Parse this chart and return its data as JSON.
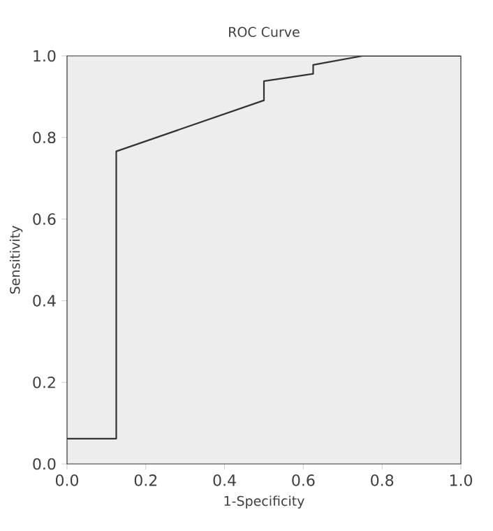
{
  "chart_data": {
    "type": "line",
    "title": "ROC Curve",
    "xlabel": "1-Specificity",
    "ylabel": "Sensitivity",
    "x": [
      0,
      0.125,
      0.125,
      0.5,
      0.5,
      0.625,
      0.625,
      0.75,
      1
    ],
    "series": [
      {
        "color": "#333333",
        "values": [
          0.062,
          0.062,
          0.766,
          0.891,
          0.938,
          0.956,
          0.978,
          1,
          1
        ]
      }
    ],
    "xlim": [
      0,
      1
    ],
    "ylim": [
      0,
      1
    ],
    "xticks": [
      {
        "value": 0,
        "label": "0.0"
      },
      0.2,
      0.4,
      0.6,
      0.8,
      {
        "value": 1,
        "label": "1.0"
      }
    ],
    "yticks": [
      {
        "value": 0,
        "label": "0.0"
      },
      0.2,
      0.4,
      0.6,
      0.8,
      {
        "value": 1,
        "label": "1.0"
      }
    ],
    "grid": false,
    "marker": "none",
    "line_style": "solid"
  }
}
